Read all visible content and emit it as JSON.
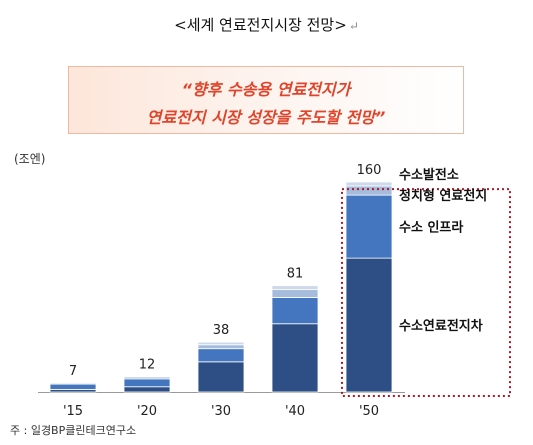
{
  "title": "<세계 연료전지시장 전망>",
  "return_mark": "↵",
  "quote": {
    "line1": "“향후 수송용 연료전지가",
    "line2": "연료전지 시장 성장을 주도할 전망”"
  },
  "unit_label": "(조엔)",
  "source_note": "주 : 일경BP클린테크연구소",
  "colors": {
    "dark_blue": "#2e4f86",
    "mid_blue": "#4476bf",
    "light_blue": "#a6bcdc",
    "pale_blue": "#cdd9ea",
    "highlight_border": "#b0182a",
    "quote_text": "#e0442a"
  },
  "chart_data": {
    "type": "bar",
    "stacked": true,
    "categories": [
      "'15",
      "'20",
      "'30",
      "'40",
      "'50"
    ],
    "totals": [
      7,
      12,
      38,
      81,
      160
    ],
    "series": [
      {
        "name": "수소연료전지차",
        "values": [
          2,
          4,
          23,
          52,
          102
        ]
      },
      {
        "name": "수소 인프라",
        "values": [
          4,
          6,
          10,
          20,
          48
        ]
      },
      {
        "name": "정치형 연료전지",
        "values": [
          0.8,
          1.5,
          3,
          6,
          7
        ]
      },
      {
        "name": "수소발전소",
        "values": [
          0.2,
          0.5,
          2,
          3,
          3
        ]
      }
    ],
    "ylim": [
      0,
      160
    ],
    "grid": false,
    "legend_position": "right",
    "highlight_category": "'50"
  }
}
